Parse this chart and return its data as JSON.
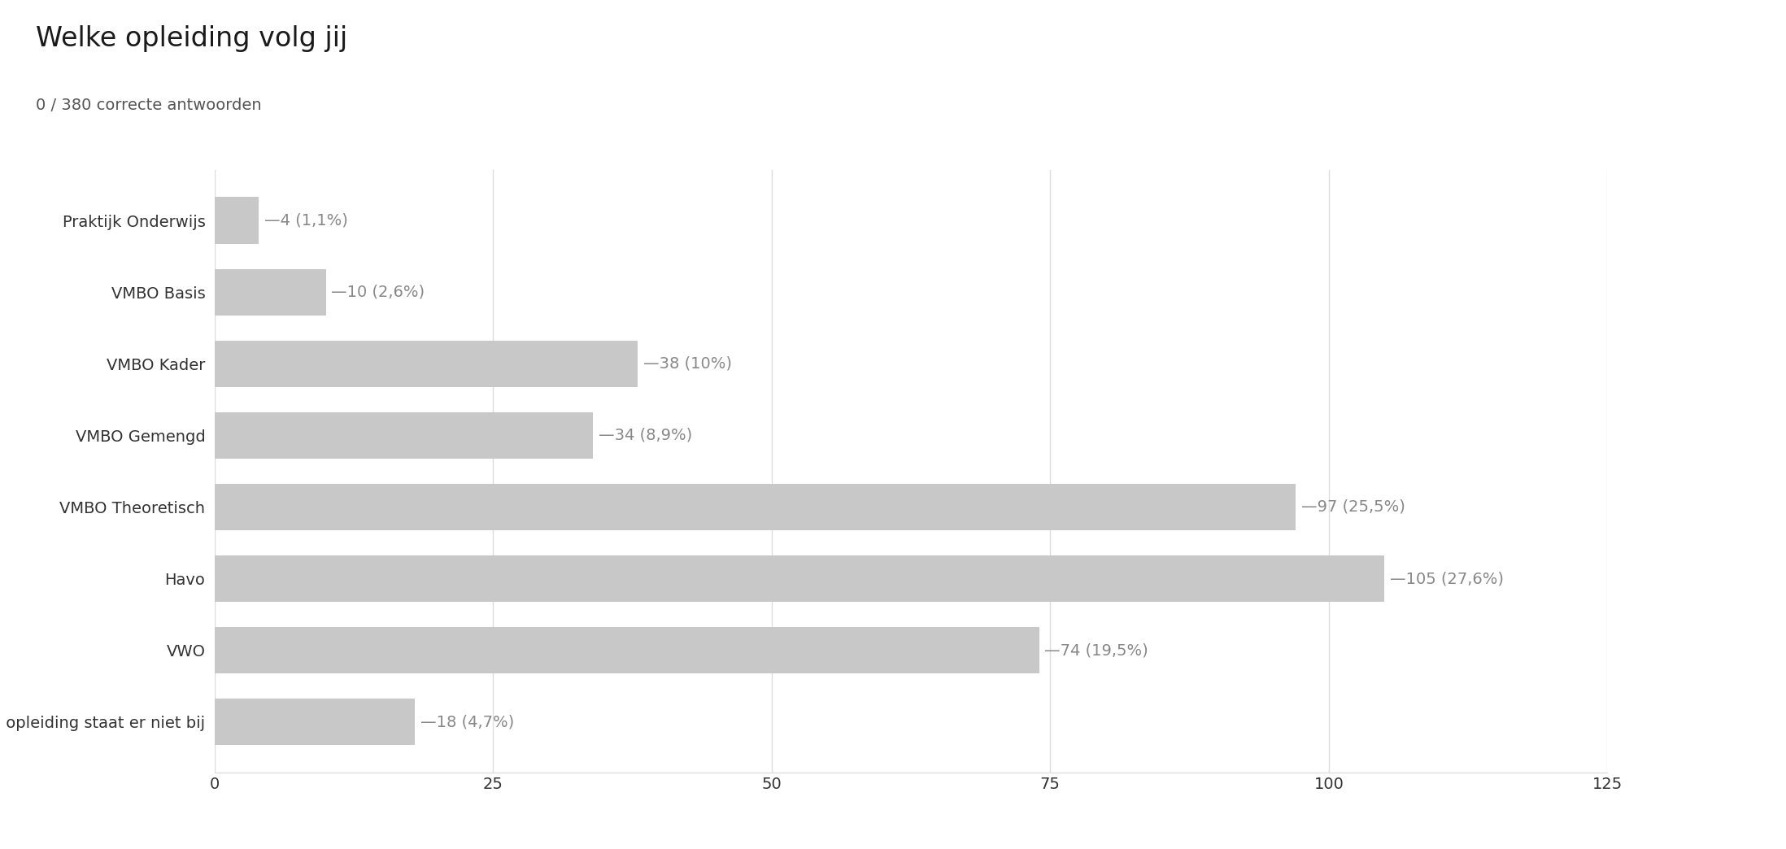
{
  "title": "Welke opleiding volg jij",
  "subtitle": "0 / 380 correcte antwoorden",
  "categories": [
    "Praktijk Onderwijs",
    "VMBO Basis",
    "VMBO Kader",
    "VMBO Gemengd",
    "VMBO Theoretisch",
    "Havo",
    "VWO",
    "Mijn opleiding staat er niet bij"
  ],
  "values": [
    4,
    10,
    38,
    34,
    97,
    105,
    74,
    18
  ],
  "labels": [
    "4 (1,1%)",
    "10 (2,6%)",
    "38 (10%)",
    "34 (8,9%)",
    "97 (25,5%)",
    "105 (27,6%)",
    "74 (19,5%)",
    "18 (4,7%)"
  ],
  "bar_color": "#c8c8c8",
  "background_color": "#ffffff",
  "title_fontsize": 24,
  "subtitle_fontsize": 14,
  "label_fontsize": 14,
  "tick_fontsize": 14,
  "xlim": [
    0,
    125
  ],
  "xticks": [
    0,
    25,
    50,
    75,
    100,
    125
  ],
  "grid_color": "#dddddd",
  "label_color": "#888888",
  "axis_color": "#333333",
  "title_color": "#1a1a1a",
  "subtitle_color": "#555555"
}
